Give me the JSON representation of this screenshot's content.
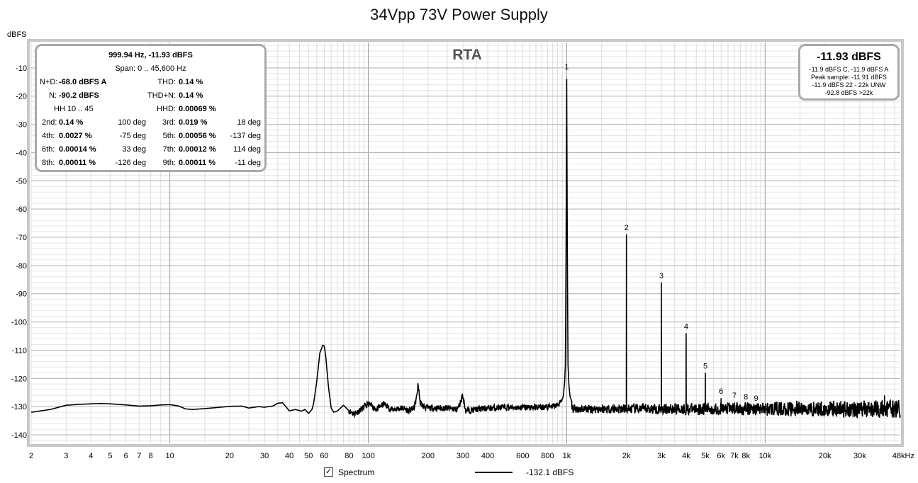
{
  "chart_data": {
    "type": "line",
    "title": "34Vpp 73V Power Supply",
    "ylabel": "dBFS",
    "overlay_label": "RTA",
    "x_scale": "log",
    "xlim": [
      2,
      48000
    ],
    "ylim": [
      -143,
      -1
    ],
    "y_ticks": [
      -10,
      -20,
      -30,
      -40,
      -50,
      -60,
      -70,
      -80,
      -90,
      -100,
      -110,
      -120,
      -130,
      -140
    ],
    "x_ticks": [
      {
        "v": 2,
        "label": "2"
      },
      {
        "v": 3,
        "label": "3"
      },
      {
        "v": 4,
        "label": "4"
      },
      {
        "v": 5,
        "label": "5"
      },
      {
        "v": 6,
        "label": "6"
      },
      {
        "v": 7,
        "label": "7"
      },
      {
        "v": 8,
        "label": "8"
      },
      {
        "v": 10,
        "label": "10"
      },
      {
        "v": 20,
        "label": "20"
      },
      {
        "v": 30,
        "label": "30"
      },
      {
        "v": 40,
        "label": "40"
      },
      {
        "v": 50,
        "label": "50"
      },
      {
        "v": 60,
        "label": "60"
      },
      {
        "v": 80,
        "label": "80"
      },
      {
        "v": 100,
        "label": "100"
      },
      {
        "v": 200,
        "label": "200"
      },
      {
        "v": 300,
        "label": "300"
      },
      {
        "v": 400,
        "label": "400"
      },
      {
        "v": 600,
        "label": "600"
      },
      {
        "v": 800,
        "label": "800"
      },
      {
        "v": 1000,
        "label": "1k"
      },
      {
        "v": 2000,
        "label": "2k"
      },
      {
        "v": 3000,
        "label": "3k"
      },
      {
        "v": 4000,
        "label": "4k"
      },
      {
        "v": 5000,
        "label": "5k"
      },
      {
        "v": 6000,
        "label": "6k"
      },
      {
        "v": 7000,
        "label": "7k"
      },
      {
        "v": 8000,
        "label": "8k"
      },
      {
        "v": 10000,
        "label": "10k"
      },
      {
        "v": 20000,
        "label": "20k"
      },
      {
        "v": 30000,
        "label": "30k"
      },
      {
        "v": 48000,
        "label": "48kHz"
      }
    ],
    "baseline": [
      [
        2,
        -132
      ],
      [
        2.5,
        -131
      ],
      [
        3,
        -129.5
      ],
      [
        3.5,
        -129.2
      ],
      [
        4,
        -129
      ],
      [
        4.5,
        -128.9
      ],
      [
        5,
        -129
      ],
      [
        6,
        -129.4
      ],
      [
        7,
        -129.8
      ],
      [
        8,
        -129.7
      ],
      [
        9,
        -129.4
      ],
      [
        10,
        -129.3
      ],
      [
        11,
        -129.7
      ],
      [
        12,
        -130.8
      ],
      [
        13,
        -131
      ],
      [
        15,
        -130.7
      ],
      [
        18,
        -130.2
      ],
      [
        20,
        -129.9
      ],
      [
        23,
        -129.8
      ],
      [
        25,
        -130.5
      ],
      [
        28,
        -130
      ],
      [
        30,
        -130.2
      ],
      [
        33,
        -129.8
      ],
      [
        35,
        -128.8
      ],
      [
        37,
        -128.6
      ],
      [
        40,
        -131.5
      ],
      [
        43,
        -131
      ],
      [
        46,
        -131.6
      ],
      [
        48,
        -131
      ],
      [
        50,
        -132.4
      ],
      [
        52,
        -131
      ],
      [
        53,
        -129
      ],
      [
        55,
        -121
      ],
      [
        57,
        -111
      ],
      [
        59,
        -108.2
      ],
      [
        60,
        -108.5
      ],
      [
        61,
        -112
      ],
      [
        63,
        -123
      ],
      [
        65,
        -130.5
      ],
      [
        67,
        -132
      ],
      [
        70,
        -131.5
      ],
      [
        75,
        -129.5
      ],
      [
        80,
        -131.5
      ],
      [
        85,
        -132.5
      ],
      [
        90,
        -131.5
      ],
      [
        100,
        -129
      ],
      [
        110,
        -131
      ],
      [
        120,
        -129
      ],
      [
        130,
        -131
      ],
      [
        150,
        -130.5
      ],
      [
        160,
        -131.5
      ],
      [
        170,
        -130.5
      ],
      [
        175,
        -127
      ],
      [
        178,
        -122.5
      ],
      [
        180,
        -124
      ],
      [
        182,
        -128.5
      ],
      [
        190,
        -130
      ],
      [
        200,
        -130.5
      ],
      [
        250,
        -130.5
      ],
      [
        280,
        -131
      ],
      [
        290,
        -129
      ],
      [
        298,
        -126
      ],
      [
        302,
        -127.5
      ],
      [
        310,
        -131.5
      ],
      [
        400,
        -130.5
      ],
      [
        500,
        -130.3
      ],
      [
        600,
        -130.3
      ],
      [
        700,
        -130.2
      ],
      [
        800,
        -130.2
      ],
      [
        850,
        -130
      ],
      [
        900,
        -129.4
      ],
      [
        940,
        -128.2
      ],
      [
        960,
        -126.5
      ],
      [
        975,
        -122
      ],
      [
        985,
        -115
      ],
      [
        995,
        -60
      ],
      [
        1000,
        -12
      ],
      [
        1005,
        -60
      ],
      [
        1015,
        -115
      ],
      [
        1025,
        -122
      ],
      [
        1040,
        -126.5
      ],
      [
        1070,
        -128.8
      ],
      [
        1100,
        -129.7
      ],
      [
        1200,
        -130.4
      ],
      [
        2000,
        -130.5
      ],
      [
        5000,
        -130.3
      ],
      [
        5800,
        -129.5
      ],
      [
        6000,
        -128
      ],
      [
        6300,
        -129.5
      ],
      [
        6500,
        -130.4
      ],
      [
        10000,
        -130.4
      ],
      [
        20000,
        -130.6
      ],
      [
        30000,
        -130.8
      ],
      [
        40000,
        -131
      ],
      [
        48000,
        -131
      ]
    ],
    "peaks": [
      {
        "label": "1",
        "x": 1000,
        "y": -12
      },
      {
        "label": "2",
        "x": 2000,
        "y": -69
      },
      {
        "label": "3",
        "x": 3000,
        "y": -86
      },
      {
        "label": "4",
        "x": 4000,
        "y": -104
      },
      {
        "label": "5",
        "x": 5000,
        "y": -118
      },
      {
        "label": "6",
        "x": 6000,
        "y": -127
      },
      {
        "label": "7",
        "x": 7000,
        "y": -128.5
      },
      {
        "label": "8",
        "x": 8000,
        "y": -129
      },
      {
        "label": "9",
        "x": 9000,
        "y": -129.5
      }
    ],
    "spurs": [
      {
        "x": 40000,
        "y": -126
      }
    ],
    "noise_band": {
      "from": 1060,
      "to": 48000,
      "center": -130.8,
      "spread": 1.8
    }
  },
  "stats": {
    "header": "999.94 Hz, -11.93 dBFS",
    "span": "Span: 0 .. 45,600 Hz",
    "nd_label": "N+D:",
    "nd_value": "-68.0 dBFS A",
    "thd_label": "THD:",
    "thd_value": "0.14 %",
    "n_label": "N:",
    "n_value": "-90.2 dBFS",
    "thdn_label": "THD+N:",
    "thdn_value": "0.14 %",
    "hh_label": "HH 10 .. 45",
    "hhd_label": "HHD:",
    "hhd_value": "0.00069 %",
    "harmonics": [
      [
        {
          "label": "2nd:",
          "value": "0.14 %",
          "phase": "100 deg"
        },
        {
          "label": "3rd:",
          "value": "0.019 %",
          "phase": "18 deg"
        }
      ],
      [
        {
          "label": "4th:",
          "value": "0.0027 %",
          "phase": "-75 deg"
        },
        {
          "label": "5th:",
          "value": "0.00056 %",
          "phase": "-137 deg"
        }
      ],
      [
        {
          "label": "6th:",
          "value": "0.00014 %",
          "phase": "33 deg"
        },
        {
          "label": "7th:",
          "value": "0.00012 %",
          "phase": "114 deg"
        }
      ],
      [
        {
          "label": "8th:",
          "value": "0.00011 %",
          "phase": "-126 deg"
        },
        {
          "label": "9th:",
          "value": "0.00011 %",
          "phase": "-11 deg"
        }
      ]
    ]
  },
  "level": {
    "main": "-11.93 dBFS",
    "lines": [
      "-11.9 dBFS C, -11.9 dBFS A",
      "Peak sample: -11.91 dBFS",
      "-11.9 dBFS 22 - 22k UNW",
      "-92.8 dBFS >22k"
    ]
  },
  "legend": {
    "checkbox_mark": "✓",
    "spectrum_label": "Spectrum",
    "trace_value": "-132.1 dBFS"
  }
}
